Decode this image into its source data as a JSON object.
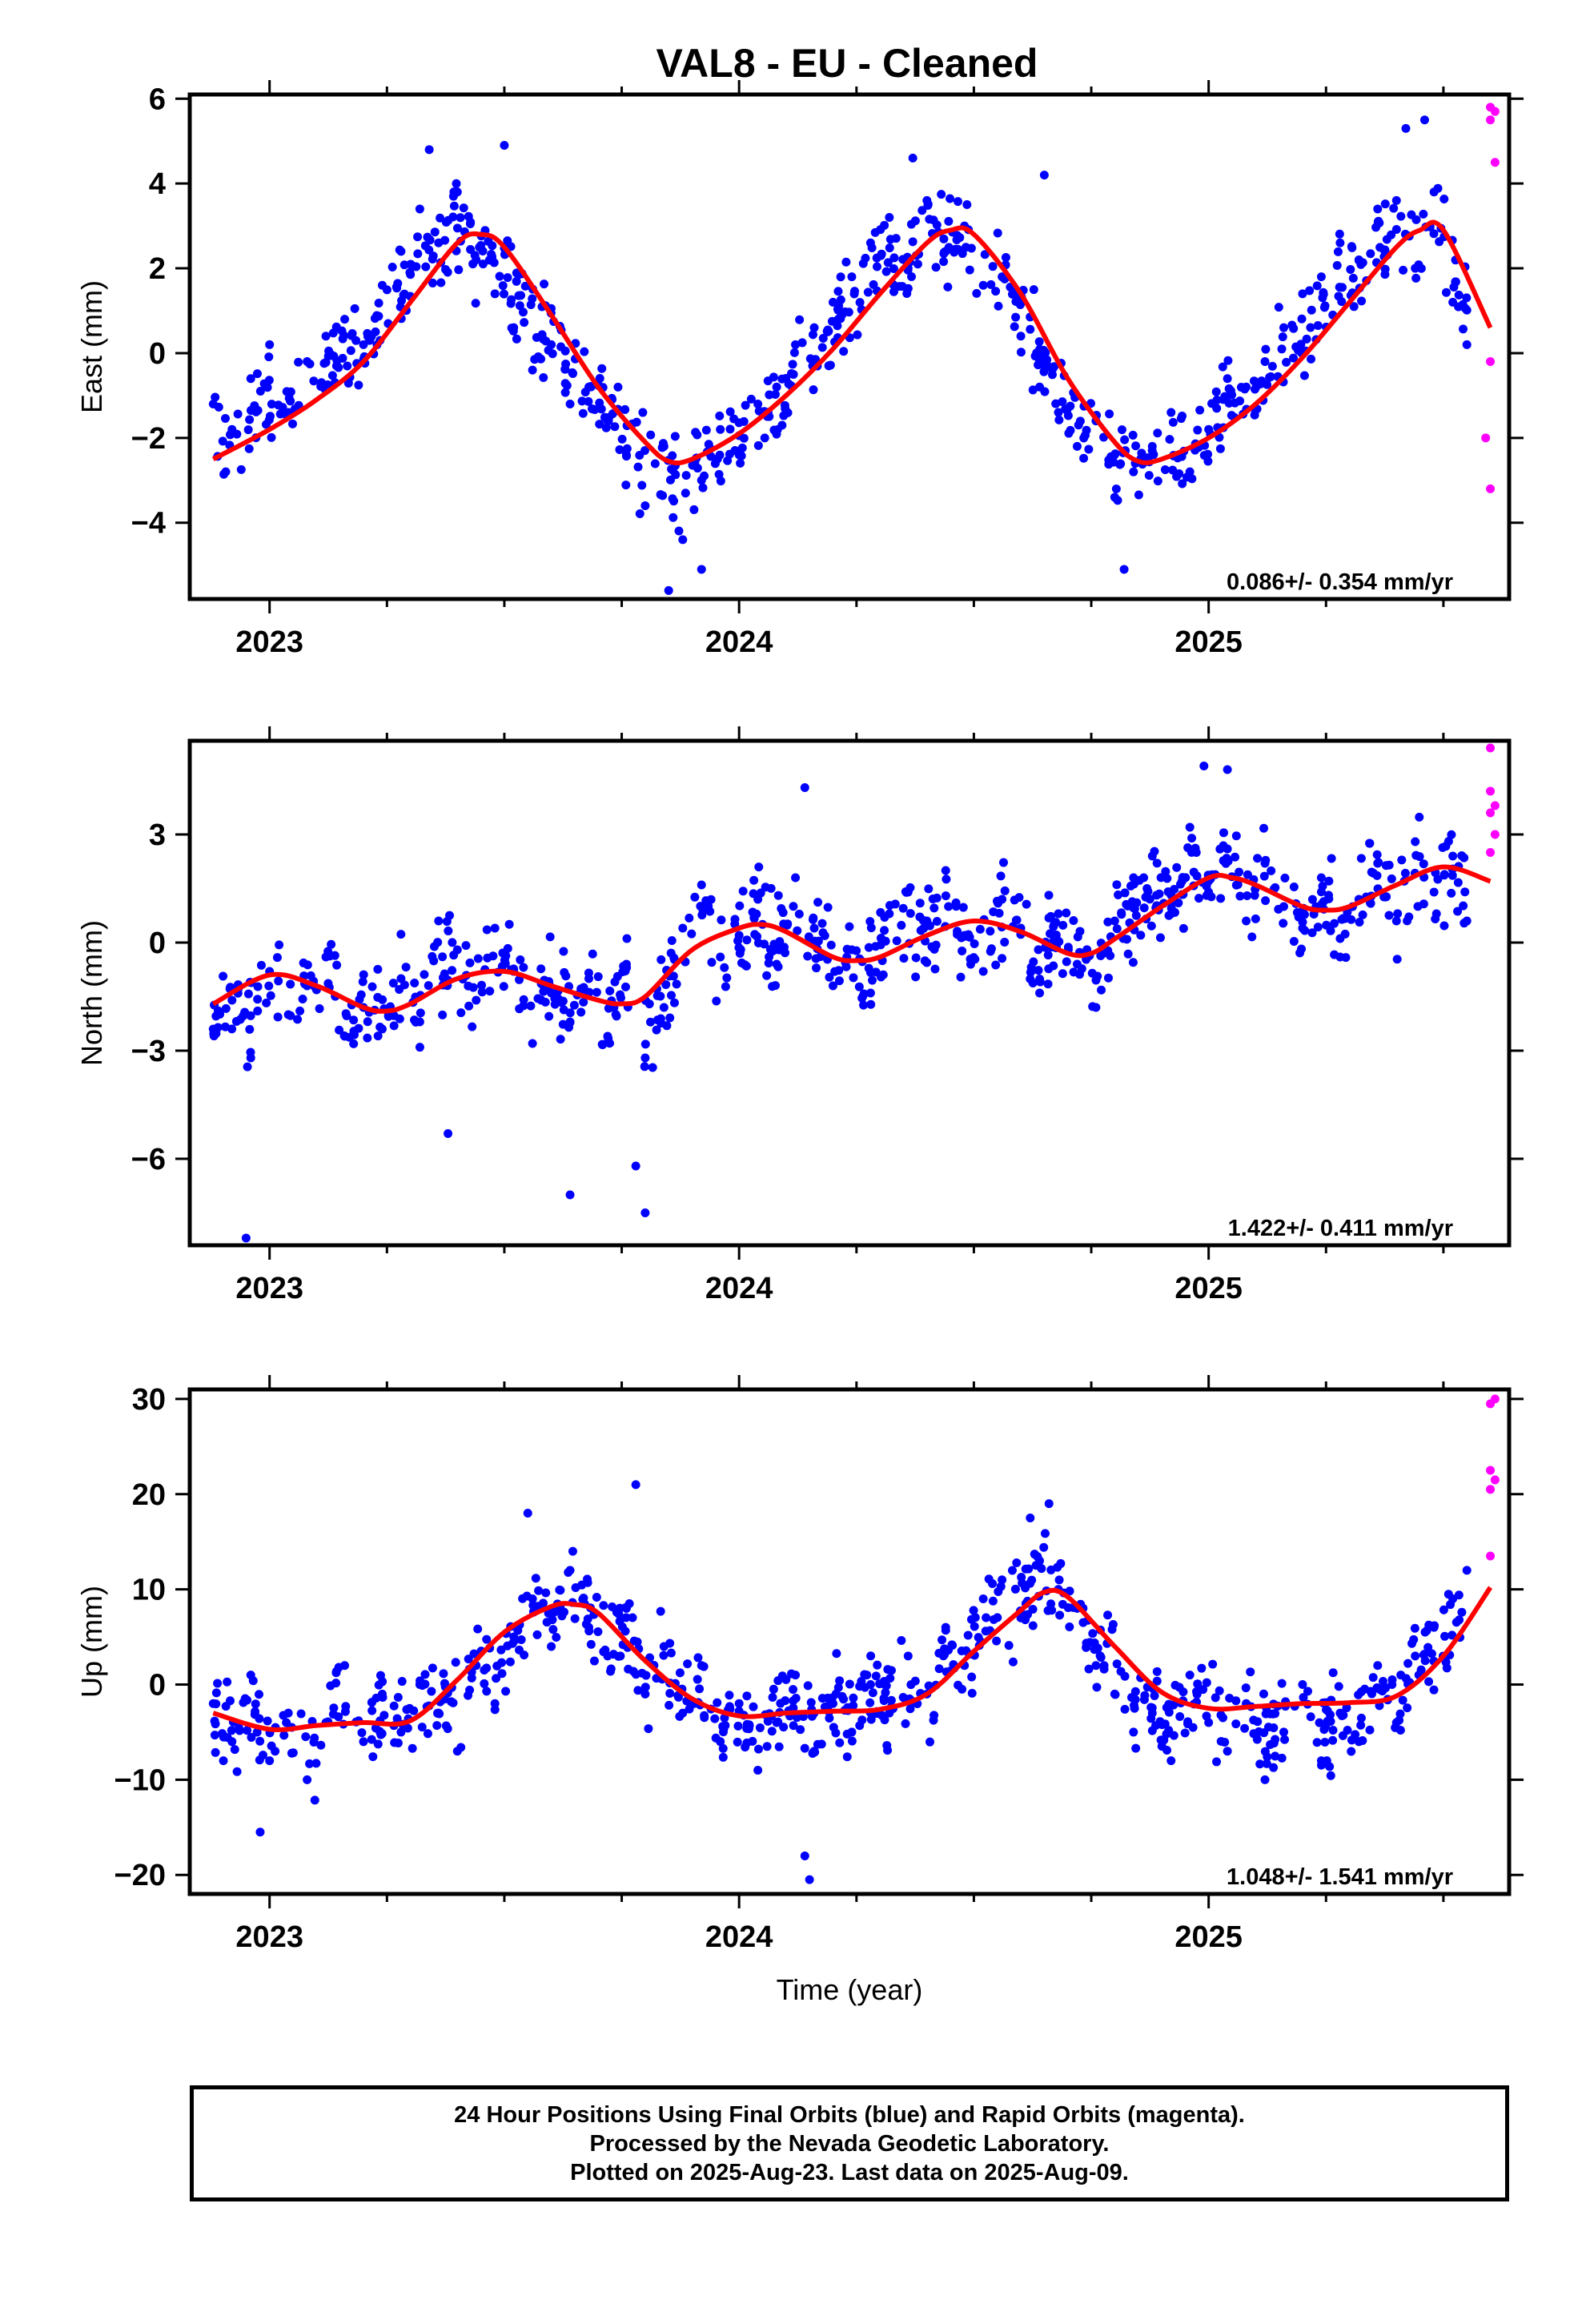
{
  "colors": {
    "final_orbits": "#0000ff",
    "rapid_orbits": "#ff00ff",
    "trend_curve": "#ff0000",
    "frame": "#000000",
    "background": "#ffffff"
  },
  "footer": {
    "line1": "24 Hour Positions Using Final Orbits (blue) and Rapid Orbits (magenta).",
    "line2": "Processed by the Nevada Geodetic Laboratory.",
    "line3": "Plotted on 2025-Aug-23. Last data on 2025-Aug-09."
  },
  "chart_data": [
    {
      "type": "scatter",
      "title": "VAL8  - EU - Cleaned",
      "ylabel": "East (mm)",
      "xlabel": "",
      "xlim": [
        2022.83,
        2025.64
      ],
      "ylim": [
        -5.8,
        6.1
      ],
      "x_ticks": [
        2023,
        2024,
        2025
      ],
      "y_ticks": [
        -4,
        -2,
        0,
        2,
        4,
        6
      ],
      "y_tick_labels": [
        "−4",
        "−2",
        "0",
        "2",
        "4",
        "6"
      ],
      "rate": "0.086+/- 0.354 mm/yr",
      "series": [
        {
          "kind": "final_orbits",
          "color": "#0000ff",
          "x": [
            2022.88,
            2022.92,
            2022.96,
            2023.0,
            2023.04,
            2023.08,
            2023.12,
            2023.16,
            2023.2,
            2023.24,
            2023.28,
            2023.32,
            2023.36,
            2023.4,
            2023.44,
            2023.48,
            2023.52,
            2023.56,
            2023.6,
            2023.64,
            2023.68,
            2023.72,
            2023.76,
            2023.8,
            2023.84,
            2023.88,
            2023.92,
            2023.96,
            2024.0,
            2024.04,
            2024.08,
            2024.12,
            2024.16,
            2024.2,
            2024.24,
            2024.28,
            2024.32,
            2024.36,
            2024.4,
            2024.44,
            2024.48,
            2024.52,
            2024.56,
            2024.6,
            2024.64,
            2024.68,
            2024.72,
            2024.76,
            2024.8,
            2024.84,
            2024.88,
            2024.92,
            2024.96,
            2025.0,
            2025.04,
            2025.08,
            2025.12,
            2025.16,
            2025.2,
            2025.24,
            2025.28,
            2025.32,
            2025.36,
            2025.4,
            2025.44,
            2025.48,
            2025.52,
            2025.55
          ],
          "y": [
            -1.2,
            -1.8,
            -0.6,
            0.2,
            -1.4,
            -0.2,
            0.4,
            0.8,
            0.2,
            1.6,
            2.4,
            3.4,
            2.6,
            3.8,
            2.2,
            1.4,
            0.6,
            -0.4,
            0.2,
            -1.2,
            -0.8,
            -1.6,
            -2.4,
            -3.6,
            -2.2,
            -4.4,
            -3.0,
            -1.8,
            -2.4,
            -1.2,
            -0.8,
            0.2,
            0.6,
            1.2,
            1.8,
            2.6,
            3.2,
            2.0,
            3.6,
            2.4,
            3.0,
            1.6,
            1.8,
            0.4,
            -0.8,
            -1.4,
            -2.2,
            -1.6,
            -3.4,
            -2.8,
            -2.2,
            -1.4,
            -2.8,
            -1.8,
            -0.6,
            -0.8,
            -0.2,
            0.6,
            1.4,
            1.8,
            2.6,
            2.2,
            3.4,
            3.6,
            2.0,
            3.8,
            1.2,
            0.2
          ],
          "note_outliers": [
            [
              2023.34,
              4.8
            ],
            [
              2023.5,
              4.9
            ],
            [
              2023.85,
              -5.6
            ],
            [
              2023.92,
              -5.1
            ],
            [
              2024.37,
              4.6
            ],
            [
              2024.65,
              4.2
            ],
            [
              2024.82,
              -5.1
            ],
            [
              2025.42,
              5.3
            ],
            [
              2025.46,
              5.5
            ]
          ]
        },
        {
          "kind": "rapid_orbits",
          "color": "#ff00ff",
          "x": [
            2025.6,
            2025.6,
            2025.61,
            2025.61,
            2025.6,
            2025.59,
            2025.6
          ],
          "y": [
            5.8,
            5.5,
            5.7,
            4.5,
            -0.2,
            -2.0,
            -3.2
          ]
        },
        {
          "kind": "trend_curve",
          "color": "#ff0000",
          "x": [
            2022.88,
            2023.0,
            2023.1,
            2023.2,
            2023.3,
            2023.4,
            2023.45,
            2023.5,
            2023.6,
            2023.7,
            2023.8,
            2023.85,
            2023.9,
            2024.0,
            2024.1,
            2024.2,
            2024.3,
            2024.4,
            2024.45,
            2024.5,
            2024.6,
            2024.7,
            2024.8,
            2024.85,
            2024.9,
            2025.0,
            2025.1,
            2025.2,
            2025.3,
            2025.4,
            2025.45,
            2025.5,
            2025.6
          ],
          "y": [
            -2.5,
            -1.8,
            -1.1,
            -0.2,
            1.2,
            2.6,
            2.8,
            2.5,
            0.9,
            -0.8,
            -2.1,
            -2.55,
            -2.5,
            -1.9,
            -1.0,
            0.1,
            1.4,
            2.6,
            2.9,
            2.8,
            1.4,
            -0.6,
            -2.1,
            -2.55,
            -2.5,
            -2.0,
            -1.2,
            -0.1,
            1.2,
            2.5,
            2.9,
            2.9,
            0.6
          ]
        }
      ]
    },
    {
      "type": "scatter",
      "title": "",
      "ylabel": "North (mm)",
      "xlabel": "",
      "xlim": [
        2022.83,
        2025.64
      ],
      "ylim": [
        -8.4,
        5.6
      ],
      "x_ticks": [
        2023,
        2024,
        2025
      ],
      "y_ticks": [
        -6,
        -3,
        0,
        3
      ],
      "y_tick_labels": [
        "−6",
        "−3",
        "0",
        "3"
      ],
      "rate": "1.422+/- 0.411 mm/yr",
      "series": [
        {
          "kind": "final_orbits",
          "color": "#0000ff",
          "x": [
            2022.88,
            2022.92,
            2022.96,
            2023.0,
            2023.04,
            2023.08,
            2023.12,
            2023.16,
            2023.2,
            2023.24,
            2023.28,
            2023.32,
            2023.36,
            2023.4,
            2023.44,
            2023.48,
            2023.52,
            2023.56,
            2023.6,
            2023.64,
            2023.68,
            2023.72,
            2023.76,
            2023.8,
            2023.84,
            2023.88,
            2023.92,
            2023.96,
            2024.0,
            2024.04,
            2024.08,
            2024.12,
            2024.16,
            2024.2,
            2024.24,
            2024.28,
            2024.32,
            2024.36,
            2024.4,
            2024.44,
            2024.48,
            2024.52,
            2024.56,
            2024.6,
            2024.64,
            2024.68,
            2024.72,
            2024.76,
            2024.8,
            2024.84,
            2024.88,
            2024.92,
            2024.96,
            2025.0,
            2025.04,
            2025.08,
            2025.12,
            2025.16,
            2025.2,
            2025.24,
            2025.28,
            2025.32,
            2025.36,
            2025.4,
            2025.44,
            2025.48,
            2025.52,
            2025.55
          ],
          "y": [
            -2.4,
            -1.6,
            -3.2,
            -0.8,
            -2.0,
            -1.2,
            -0.4,
            -2.6,
            -1.8,
            -2.4,
            -1.0,
            -2.2,
            0.6,
            -0.2,
            -1.6,
            0.4,
            -0.8,
            -2.8,
            -1.4,
            -2.2,
            -1.0,
            -2.6,
            -0.6,
            -3.2,
            -1.8,
            0.4,
            1.6,
            -0.4,
            0.2,
            1.2,
            -0.6,
            1.8,
            0.4,
            -1.2,
            -0.2,
            -1.4,
            0.8,
            1.4,
            0.6,
            2.0,
            0.2,
            -0.8,
            1.2,
            0.4,
            -1.4,
            0.8,
            -0.6,
            -1.8,
            0.6,
            1.8,
            2.4,
            0.8,
            3.2,
            1.4,
            2.6,
            0.6,
            2.2,
            1.0,
            0.4,
            1.8,
            -0.4,
            1.2,
            2.2,
            0.6,
            2.8,
            1.4,
            2.4,
            0.6
          ],
          "note_outliers": [
            [
              2022.95,
              -8.2
            ],
            [
              2023.38,
              -5.3
            ],
            [
              2023.64,
              -7.0
            ],
            [
              2023.78,
              -6.2
            ],
            [
              2023.8,
              -7.5
            ],
            [
              2024.14,
              4.3
            ],
            [
              2024.99,
              4.9
            ],
            [
              2025.04,
              4.8
            ]
          ]
        },
        {
          "kind": "rapid_orbits",
          "color": "#ff00ff",
          "x": [
            2025.6,
            2025.6,
            2025.61,
            2025.6,
            2025.61,
            2025.6
          ],
          "y": [
            5.4,
            4.2,
            3.8,
            3.6,
            3.0,
            2.5
          ]
        },
        {
          "kind": "trend_curve",
          "color": "#ff0000",
          "x": [
            2022.88,
            2023.0,
            2023.1,
            2023.2,
            2023.25,
            2023.3,
            2023.4,
            2023.5,
            2023.6,
            2023.7,
            2023.75,
            2023.8,
            2023.9,
            2024.0,
            2024.05,
            2024.1,
            2024.2,
            2024.25,
            2024.3,
            2024.4,
            2024.5,
            2024.6,
            2024.7,
            2024.75,
            2024.8,
            2024.9,
            2025.0,
            2025.05,
            2025.1,
            2025.2,
            2025.25,
            2025.3,
            2025.4,
            2025.5,
            2025.6
          ],
          "y": [
            -1.7,
            -0.9,
            -1.2,
            -1.8,
            -1.9,
            -1.7,
            -1.0,
            -0.8,
            -1.2,
            -1.6,
            -1.7,
            -1.5,
            -0.2,
            0.4,
            0.5,
            0.3,
            -0.4,
            -0.5,
            -0.4,
            0.2,
            0.6,
            0.3,
            -0.3,
            -0.3,
            0.1,
            1.0,
            1.8,
            1.8,
            1.6,
            1.0,
            0.9,
            1.0,
            1.6,
            2.1,
            1.7
          ]
        }
      ]
    },
    {
      "type": "scatter",
      "title": "",
      "ylabel": "Up (mm)",
      "xlabel": "Time (year)",
      "xlim": [
        2022.83,
        2025.64
      ],
      "ylim": [
        -22,
        31
      ],
      "x_ticks": [
        2023,
        2024,
        2025
      ],
      "y_ticks": [
        -20,
        -10,
        0,
        10,
        20,
        30
      ],
      "y_tick_labels": [
        "−20",
        "−10",
        "0",
        "10",
        "20",
        "30"
      ],
      "rate": "1.048+/- 1.541 mm/yr",
      "series": [
        {
          "kind": "final_orbits",
          "color": "#0000ff",
          "x": [
            2022.88,
            2022.92,
            2022.96,
            2023.0,
            2023.04,
            2023.08,
            2023.12,
            2023.16,
            2023.2,
            2023.24,
            2023.28,
            2023.32,
            2023.36,
            2023.4,
            2023.44,
            2023.48,
            2023.52,
            2023.56,
            2023.6,
            2023.64,
            2023.68,
            2023.72,
            2023.76,
            2023.8,
            2023.84,
            2023.88,
            2023.92,
            2023.96,
            2024.0,
            2024.04,
            2024.08,
            2024.12,
            2024.16,
            2024.2,
            2024.24,
            2024.28,
            2024.32,
            2024.36,
            2024.4,
            2024.44,
            2024.48,
            2024.52,
            2024.56,
            2024.6,
            2024.64,
            2024.68,
            2024.72,
            2024.76,
            2024.8,
            2024.84,
            2024.88,
            2024.92,
            2024.96,
            2025.0,
            2025.04,
            2025.08,
            2025.12,
            2025.16,
            2025.2,
            2025.24,
            2025.28,
            2025.32,
            2025.36,
            2025.4,
            2025.44,
            2025.48,
            2025.52,
            2025.55
          ],
          "y": [
            -2,
            -6,
            1,
            -8,
            -3,
            -10,
            -4,
            2,
            -6,
            -1,
            -5,
            0,
            -3,
            -7,
            2,
            -2,
            5,
            9,
            4,
            12,
            6,
            3,
            8,
            -1,
            4,
            -3,
            2,
            -6,
            -2,
            -9,
            -4,
            1,
            -7,
            -2,
            -5,
            0,
            -3,
            3,
            -1,
            6,
            2,
            9,
            11,
            7,
            13,
            10,
            8,
            2,
            -1,
            -5,
            -3,
            -8,
            1,
            -4,
            -7,
            -2,
            -10,
            -5,
            0,
            -8,
            -3,
            -6,
            2,
            -4,
            3,
            6,
            9,
            12
          ],
          "note_outliers": [
            [
              2022.98,
              -15.5
            ],
            [
              2023.55,
              18.0
            ],
            [
              2023.78,
              21.0
            ],
            [
              2024.14,
              -18.0
            ],
            [
              2024.15,
              -20.5
            ],
            [
              2024.62,
              17.5
            ],
            [
              2024.66,
              19.0
            ]
          ]
        },
        {
          "kind": "rapid_orbits",
          "color": "#ff00ff",
          "x": [
            2025.6,
            2025.61,
            2025.6,
            2025.61,
            2025.6,
            2025.6
          ],
          "y": [
            29.5,
            30.0,
            22.5,
            21.5,
            20.5,
            13.5
          ]
        },
        {
          "kind": "trend_curve",
          "color": "#ff0000",
          "x": [
            2022.88,
            2023.0,
            2023.1,
            2023.2,
            2023.3,
            2023.4,
            2023.5,
            2023.6,
            2023.65,
            2023.7,
            2023.8,
            2023.9,
            2024.0,
            2024.1,
            2024.2,
            2024.3,
            2024.4,
            2024.5,
            2024.6,
            2024.65,
            2024.7,
            2024.8,
            2024.9,
            2025.0,
            2025.1,
            2025.2,
            2025.3,
            2025.4,
            2025.5,
            2025.6
          ],
          "y": [
            -3.0,
            -4.7,
            -4.3,
            -4.0,
            -3.8,
            0.5,
            5.5,
            8.2,
            8.4,
            7.5,
            2.5,
            -1.5,
            -3.3,
            -3.0,
            -2.8,
            -2.6,
            -1.0,
            3.5,
            7.8,
            9.7,
            9.2,
            4.0,
            -0.8,
            -2.5,
            -2.3,
            -2.0,
            -1.9,
            -1.2,
            3.0,
            10.2
          ]
        }
      ]
    }
  ]
}
